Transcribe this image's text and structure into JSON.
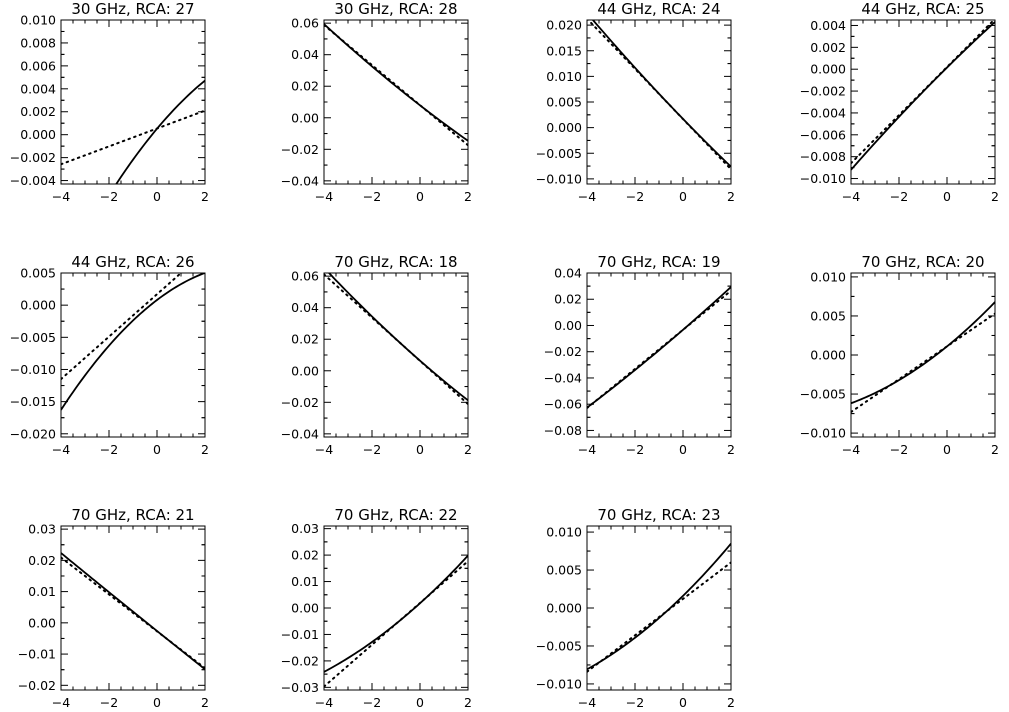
{
  "chart_data": [
    {
      "type": "line",
      "title": "30 GHz, RCA: 27",
      "x": [
        -4,
        2
      ],
      "xlim": [
        -4,
        2
      ],
      "xticks": [
        -4,
        -2,
        0,
        2
      ],
      "xtick_labels": [
        "−4",
        "−2",
        "0",
        "2"
      ],
      "ylim": [
        -0.0043,
        0.01
      ],
      "yticks": [
        -0.004,
        -0.002,
        0.0,
        0.002,
        0.004,
        0.006,
        0.008,
        0.01
      ],
      "ytick_labels": [
        "−0.004",
        "−0.002",
        "0.000",
        "0.002",
        "0.004",
        "0.006",
        "0.008",
        "0.010"
      ],
      "series": [
        {
          "style": "solid",
          "coeffs": [
            0.00052,
            0.0025,
            -0.0002
          ]
        },
        {
          "style": "dotted",
          "coeffs": [
            0.00054,
            0.00078,
            0
          ]
        }
      ]
    },
    {
      "type": "line",
      "title": "30 GHz, RCA: 28",
      "x": [
        -4,
        2
      ],
      "xlim": [
        -4,
        2
      ],
      "xticks": [
        -4,
        -2,
        0,
        2
      ],
      "xtick_labels": [
        "−4",
        "−2",
        "0",
        "2"
      ],
      "ylim": [
        -0.042,
        0.062
      ],
      "yticks": [
        -0.04,
        -0.02,
        0.0,
        0.02,
        0.04,
        0.06
      ],
      "ytick_labels": [
        "−0.04",
        "−0.02",
        "0.00",
        "0.02",
        "0.04",
        "0.06"
      ],
      "series": [
        {
          "style": "solid",
          "coeffs": [
            0.0079,
            -0.0118,
            0.00027
          ]
        },
        {
          "style": "dotted",
          "coeffs": [
            0.008,
            -0.0127,
            0
          ]
        }
      ]
    },
    {
      "type": "line",
      "title": "44 GHz, RCA: 24",
      "x": [
        -4,
        2
      ],
      "xlim": [
        -4,
        2
      ],
      "xticks": [
        -4,
        -2,
        0,
        2
      ],
      "xtick_labels": [
        "−4",
        "−2",
        "0",
        "2"
      ],
      "ylim": [
        -0.011,
        0.021
      ],
      "yticks": [
        -0.01,
        -0.005,
        0.0,
        0.005,
        0.01,
        0.015,
        0.02
      ],
      "ytick_labels": [
        "−0.010",
        "−0.005",
        "0.000",
        "0.005",
        "0.010",
        "0.015",
        "0.020"
      ],
      "series": [
        {
          "style": "solid",
          "coeffs": [
            0.0017,
            -0.00483,
            8.3e-05
          ]
        },
        {
          "style": "dotted",
          "coeffs": [
            0.00167,
            -0.0049,
            0
          ]
        }
      ]
    },
    {
      "type": "line",
      "title": "44 GHz, RCA: 25",
      "x": [
        -4,
        2
      ],
      "xlim": [
        -4,
        2
      ],
      "xticks": [
        -4,
        -2,
        0,
        2
      ],
      "xtick_labels": [
        "−4",
        "−2",
        "0",
        "2"
      ],
      "ylim": [
        -0.0105,
        0.0045
      ],
      "yticks": [
        -0.01,
        -0.008,
        -0.006,
        -0.004,
        -0.002,
        0.0,
        0.002,
        0.004
      ],
      "ytick_labels": [
        "−0.010",
        "−0.008",
        "−0.006",
        "−0.004",
        "−0.002",
        "0.000",
        "0.002",
        "0.004"
      ],
      "series": [
        {
          "style": "solid",
          "coeffs": [
            0.00015,
            0.00217,
            -4.2e-05
          ]
        },
        {
          "style": "dotted",
          "coeffs": [
            0.0002,
            0.0022,
            0
          ]
        }
      ]
    },
    {
      "type": "line",
      "title": "44 GHz, RCA: 26",
      "x": [
        -4,
        2
      ],
      "xlim": [
        -4,
        2
      ],
      "xticks": [
        -4,
        -2,
        0,
        2
      ],
      "xtick_labels": [
        "−4",
        "−2",
        "0",
        "2"
      ],
      "ylim": [
        -0.0205,
        0.005
      ],
      "yticks": [
        -0.02,
        -0.015,
        -0.01,
        -0.005,
        0.0,
        0.005
      ],
      "ytick_labels": [
        "−0.020",
        "−0.015",
        "−0.010",
        "−0.005",
        "0.000",
        "0.005"
      ],
      "series": [
        {
          "style": "solid",
          "coeffs": [
            0.0008,
            0.00283,
            -0.00036
          ]
        },
        {
          "style": "dotted",
          "coeffs": [
            0.0017,
            0.0033,
            0
          ]
        }
      ]
    },
    {
      "type": "line",
      "title": "70 GHz, RCA: 18",
      "x": [
        -4,
        2
      ],
      "xlim": [
        -4,
        2
      ],
      "xticks": [
        -4,
        -2,
        0,
        2
      ],
      "xtick_labels": [
        "−4",
        "−2",
        "0",
        "2"
      ],
      "ylim": [
        -0.042,
        0.062
      ],
      "yticks": [
        -0.04,
        -0.02,
        0.0,
        0.02,
        0.04,
        0.06
      ],
      "ytick_labels": [
        "−0.04",
        "−0.02",
        "0.00",
        "0.02",
        "0.04",
        "0.06"
      ],
      "series": [
        {
          "style": "solid",
          "coeffs": [
            0.0064,
            -0.0133,
            0.00036
          ]
        },
        {
          "style": "dotted",
          "coeffs": [
            0.0063,
            -0.0137,
            0
          ]
        }
      ]
    },
    {
      "type": "line",
      "title": "70 GHz, RCA: 19",
      "x": [
        -4,
        2
      ],
      "xlim": [
        -4,
        2
      ],
      "xticks": [
        -4,
        -2,
        0,
        2
      ],
      "xtick_labels": [
        "−4",
        "−2",
        "0",
        "2"
      ],
      "ylim": [
        -0.085,
        0.04
      ],
      "yticks": [
        -0.08,
        -0.06,
        -0.04,
        -0.02,
        0.0,
        0.02,
        0.04
      ],
      "ytick_labels": [
        "−0.08",
        "−0.06",
        "−0.04",
        "−0.02",
        "0.00",
        "0.02",
        "0.04"
      ],
      "series": [
        {
          "style": "solid",
          "coeffs": [
            -0.0033,
            0.01583,
            0.00025
          ]
        },
        {
          "style": "dotted",
          "coeffs": [
            -0.0033,
            0.0149,
            0
          ]
        }
      ]
    },
    {
      "type": "line",
      "title": "70 GHz, RCA: 20",
      "x": [
        -4,
        2
      ],
      "xlim": [
        -4,
        2
      ],
      "xticks": [
        -4,
        -2,
        0,
        2
      ],
      "xtick_labels": [
        "−4",
        "−2",
        "0",
        "2"
      ],
      "ylim": [
        -0.0105,
        0.0105
      ],
      "yticks": [
        -0.01,
        -0.005,
        0.0,
        0.005,
        0.01
      ],
      "ytick_labels": [
        "−0.010",
        "−0.005",
        "0.000",
        "0.005",
        "0.010"
      ],
      "series": [
        {
          "style": "solid",
          "coeffs": [
            0.0011,
            0.0025,
            0.00017
          ]
        },
        {
          "style": "dotted",
          "coeffs": [
            0.0011,
            0.0021,
            0
          ]
        }
      ]
    },
    {
      "type": "line",
      "title": "70 GHz, RCA: 21",
      "x": [
        -4,
        2
      ],
      "xlim": [
        -4,
        2
      ],
      "xticks": [
        -4,
        -2,
        0,
        2
      ],
      "xtick_labels": [
        "−4",
        "−2",
        "0",
        "2"
      ],
      "ylim": [
        -0.0215,
        0.031
      ],
      "yticks": [
        -0.02,
        -0.01,
        0.0,
        0.01,
        0.02,
        0.03
      ],
      "ytick_labels": [
        "−0.02",
        "−0.01",
        "0.00",
        "0.01",
        "0.02",
        "0.03"
      ],
      "series": [
        {
          "style": "solid",
          "coeffs": [
            -0.0026,
            -0.00617,
            1.7e-05
          ]
        },
        {
          "style": "dotted",
          "coeffs": [
            -0.0027,
            -0.0059,
            0
          ]
        }
      ]
    },
    {
      "type": "line",
      "title": "70 GHz, RCA: 22",
      "x": [
        -4,
        2
      ],
      "xlim": [
        -4,
        2
      ],
      "xticks": [
        -4,
        -2,
        0,
        2
      ],
      "xtick_labels": [
        "−4",
        "−2",
        "0",
        "2"
      ],
      "ylim": [
        -0.031,
        0.031
      ],
      "yticks": [
        -0.03,
        -0.02,
        -0.01,
        0.0,
        0.01,
        0.02,
        0.03
      ],
      "ytick_labels": [
        "−0.03",
        "−0.02",
        "−0.01",
        "0.00",
        "0.01",
        "0.02",
        "0.03"
      ],
      "series": [
        {
          "style": "solid",
          "coeffs": [
            0.0018,
            0.00817,
            0.00042
          ]
        },
        {
          "style": "dotted",
          "coeffs": [
            0.0019,
            0.0079,
            0
          ]
        }
      ]
    },
    {
      "type": "line",
      "title": "70 GHz, RCA: 23",
      "x": [
        -4,
        2
      ],
      "xlim": [
        -4,
        2
      ],
      "xticks": [
        -4,
        -2,
        0,
        2
      ],
      "xtick_labels": [
        "−4",
        "−2",
        "0",
        "2"
      ],
      "ylim": [
        -0.0108,
        0.0108
      ],
      "yticks": [
        -0.01,
        -0.005,
        0.0,
        0.005,
        0.01
      ],
      "ytick_labels": [
        "−0.010",
        "−0.005",
        "0.000",
        "0.005",
        "0.010"
      ],
      "series": [
        {
          "style": "solid",
          "coeffs": [
            0.0016,
            0.0031,
            0.00017
          ]
        },
        {
          "style": "dotted",
          "coeffs": [
            0.0012,
            0.0024,
            0
          ]
        }
      ]
    }
  ]
}
